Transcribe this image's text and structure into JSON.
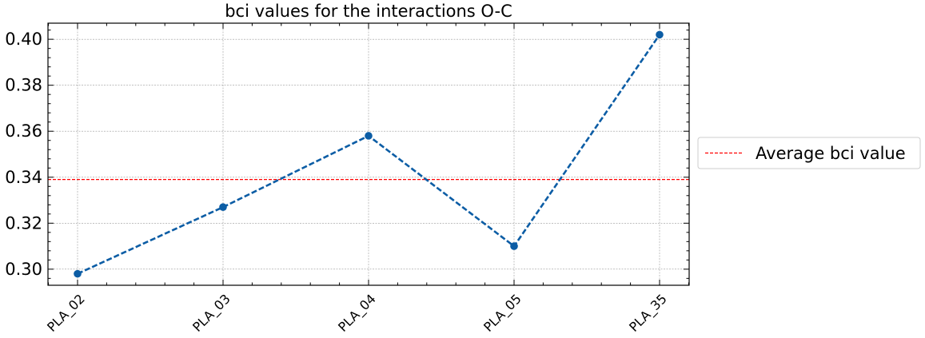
{
  "chart_data": {
    "type": "line",
    "title": "bci values for the interactions O-C",
    "xlabel": "",
    "ylabel": "",
    "categories": [
      "PLA_02",
      "PLA_03",
      "PLA_04",
      "PLA_05",
      "PLA_35"
    ],
    "series": [
      {
        "values": [
          0.298,
          0.327,
          0.358,
          0.31,
          0.402
        ],
        "color": "#0c5da5",
        "style": "dashed",
        "marker": "circle"
      }
    ],
    "reference_lines": [
      {
        "name": "Average bci value",
        "value": 0.339,
        "color": "#ff0000",
        "style": "dashed"
      }
    ],
    "yticks": [
      "0.30",
      "0.32",
      "0.34",
      "0.36",
      "0.38",
      "0.40"
    ],
    "ylim": [
      0.293,
      0.407
    ],
    "grid": true,
    "legend": {
      "placement": "right-outside",
      "entries": [
        "Average bci value"
      ]
    }
  }
}
